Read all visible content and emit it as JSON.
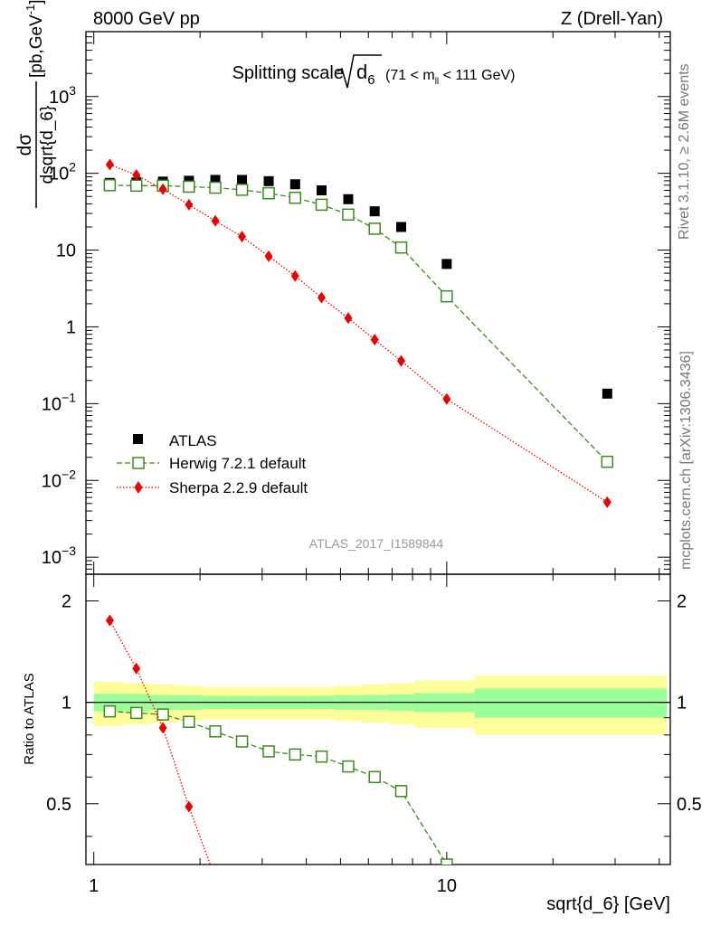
{
  "header": {
    "left": "8000 GeV pp",
    "right": "Z (Drell-Yan)",
    "title_main": "Splitting scale",
    "title_sym": "d",
    "title_sub": "6",
    "title_range_pre": "(71 < m",
    "title_range_sub": "ll",
    "title_range_post": " < 111 GeV)"
  },
  "side": {
    "rivet": "Rivet 3.1.10, ≥ 2.6M events",
    "mcplots": "mcplots.cern.ch [arXiv:1306.3436]"
  },
  "watermark": "ATLAS_2017_I1589844",
  "ylabel_main": {
    "num": "dσ",
    "den": "dsqrt{d_6}",
    "unit": "[pb,GeV",
    "unit_sup": "-1",
    "unit_close": "]"
  },
  "ylabel_ratio": "Ratio to ATLAS",
  "xlabel": "sqrt{d_6} [GeV]",
  "legend": [
    {
      "label": "ATLAS"
    },
    {
      "label": "Herwig 7.2.1 default"
    },
    {
      "label": "Sherpa 2.2.9 default"
    }
  ],
  "colors": {
    "atlas": "#000000",
    "herwig": "#3a8c1c",
    "sherpa": "#ee0000",
    "band_inner": "#99ff99",
    "band_outer": "#ffff99"
  },
  "chart_data": {
    "type": "scatter",
    "x_scale": "log",
    "y_scale": "log",
    "xlim": [
      0.95,
      43
    ],
    "ylim": [
      0.0006,
      7000
    ],
    "ratio_ylim": [
      0.33,
      2.4
    ],
    "x_ticks": [
      {
        "v": 1,
        "label": "1"
      },
      {
        "v": 10,
        "label": "10"
      }
    ],
    "y_ticks": [
      {
        "v": 0.001,
        "base": "10",
        "exp": "−3"
      },
      {
        "v": 0.01,
        "base": "10",
        "exp": "−2"
      },
      {
        "v": 0.1,
        "base": "10",
        "exp": "−1"
      },
      {
        "v": 1,
        "base": "1",
        "exp": ""
      },
      {
        "v": 10,
        "base": "10",
        "exp": ""
      },
      {
        "v": 100,
        "base": "10",
        "exp": "2"
      },
      {
        "v": 1000,
        "base": "10",
        "exp": "3"
      }
    ],
    "ratio_ticks": [
      {
        "v": 0.5,
        "label": "0.5"
      },
      {
        "v": 1,
        "label": "1"
      },
      {
        "v": 2,
        "label": "2"
      }
    ],
    "series": [
      {
        "name": "ATLAS",
        "x": [
          1.11,
          1.32,
          1.57,
          1.86,
          2.21,
          2.63,
          3.13,
          3.72,
          4.42,
          5.26,
          6.25,
          7.43,
          10.0,
          28.5
        ],
        "y": [
          75,
          76,
          78,
          80,
          82,
          82,
          79,
          72,
          60,
          46,
          32,
          20,
          6.6,
          0.135
        ]
      },
      {
        "name": "Herwig 7.2.1 default",
        "x": [
          1.11,
          1.32,
          1.57,
          1.86,
          2.21,
          2.63,
          3.13,
          3.72,
          4.42,
          5.26,
          6.25,
          7.43,
          10.0,
          28.5
        ],
        "y": [
          70,
          69,
          69,
          67,
          65,
          61,
          55,
          48,
          39,
          29,
          19,
          10.8,
          2.5,
          0.0175
        ]
      },
      {
        "name": "Sherpa 2.2.9 default",
        "x": [
          1.11,
          1.32,
          1.57,
          1.86,
          2.21,
          2.63,
          3.13,
          3.72,
          4.42,
          5.26,
          6.25,
          7.43,
          10.0,
          28.5
        ],
        "y": [
          130,
          95,
          62,
          39,
          24,
          15,
          8.3,
          4.6,
          2.4,
          1.3,
          0.68,
          0.36,
          0.115,
          0.0052
        ]
      }
    ],
    "ratio": {
      "bins": [
        1.0,
        1.21,
        1.44,
        1.71,
        2.03,
        2.41,
        2.87,
        3.41,
        4.05,
        4.82,
        5.73,
        6.81,
        8.1,
        12.0,
        42.0
      ],
      "inner_hw": [
        0.06,
        0.06,
        0.05,
        0.05,
        0.045,
        0.045,
        0.045,
        0.045,
        0.045,
        0.05,
        0.05,
        0.055,
        0.065,
        0.1
      ],
      "outer_hw": [
        0.15,
        0.14,
        0.13,
        0.12,
        0.11,
        0.11,
        0.11,
        0.11,
        0.11,
        0.12,
        0.13,
        0.14,
        0.16,
        0.2
      ],
      "herwig": [
        0.94,
        0.93,
        0.92,
        0.875,
        0.82,
        0.765,
        0.715,
        0.7,
        0.69,
        0.645,
        0.6,
        0.545,
        0.33
      ],
      "sherpa": [
        1.75,
        1.26,
        0.84,
        0.49,
        0.3
      ]
    }
  }
}
